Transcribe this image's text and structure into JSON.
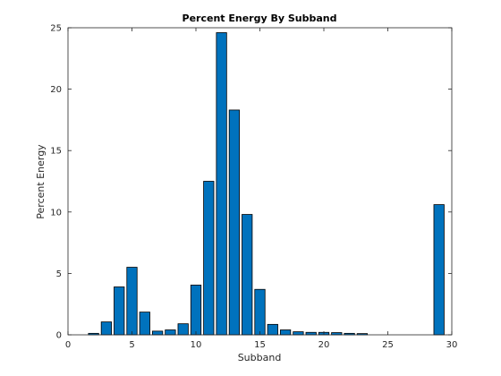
{
  "chart_data": {
    "type": "bar",
    "title": "Percent Energy By Subband",
    "xlabel": "Subband",
    "ylabel": "Percent Energy",
    "xlim": [
      0,
      30
    ],
    "ylim": [
      0,
      25
    ],
    "xticks": [
      0,
      5,
      10,
      15,
      20,
      25,
      30
    ],
    "yticks": [
      0,
      5,
      10,
      15,
      20,
      25
    ],
    "grid": false,
    "bar_color": "#0072BD",
    "x": [
      1,
      2,
      3,
      4,
      5,
      6,
      7,
      8,
      9,
      10,
      11,
      12,
      13,
      14,
      15,
      16,
      17,
      18,
      19,
      20,
      21,
      22,
      23,
      24,
      25,
      26,
      27,
      28,
      29
    ],
    "values": [
      0,
      0.12,
      1.05,
      3.9,
      5.5,
      1.85,
      0.3,
      0.4,
      0.9,
      4.05,
      12.5,
      24.6,
      18.3,
      9.8,
      3.7,
      0.85,
      0.4,
      0.25,
      0.2,
      0.2,
      0.18,
      0.12,
      0.1,
      0,
      0,
      0,
      0,
      0,
      10.6
    ]
  }
}
